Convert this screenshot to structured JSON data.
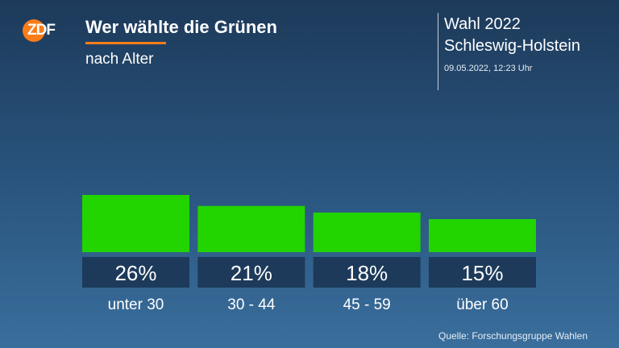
{
  "header": {
    "logo_text": "ZDF",
    "title": "Wer wählte die Grünen",
    "subtitle": "nach Alter"
  },
  "event": {
    "title": "Wahl 2022",
    "subtitle": "Schleswig-Holstein",
    "timestamp": "09.05.2022, 12:23 Uhr"
  },
  "source": "Quelle: Forschungsgruppe Wahlen",
  "colors": {
    "bar": "#22d400",
    "label_box": "#1d3a5a",
    "accent": "#fa7d19"
  },
  "chart_data": {
    "type": "bar",
    "title": "Wer wählte die Grünen",
    "subtitle": "nach Alter",
    "categories": [
      "unter 30",
      "30 - 44",
      "45 - 59",
      "über 60"
    ],
    "values": [
      26,
      21,
      18,
      15
    ],
    "value_labels": [
      "26%",
      "21%",
      "18%",
      "15%"
    ],
    "unit": "%",
    "grid": false
  }
}
